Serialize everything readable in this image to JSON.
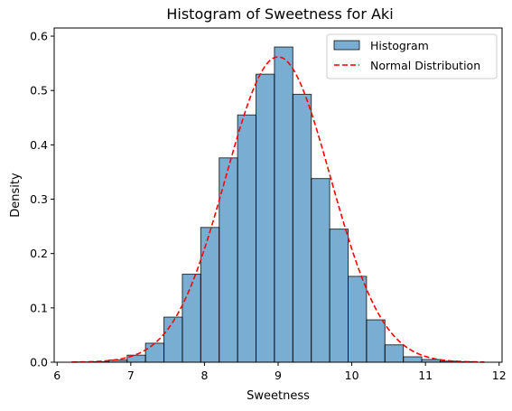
{
  "chart_data": {
    "type": "bar",
    "title": "Histogram of Sweetness for Aki",
    "xlabel": "Sweetness",
    "ylabel": "Density",
    "xlim": [
      5.96,
      12.04
    ],
    "ylim": [
      0,
      0.615
    ],
    "xticks": [
      "6",
      "7",
      "8",
      "9",
      "10",
      "11",
      "12"
    ],
    "yticks": [
      "0.0",
      "0.1",
      "0.2",
      "0.3",
      "0.4",
      "0.5",
      "0.6"
    ],
    "grid": false,
    "legend_position": "top-right",
    "series": [
      {
        "name": "Histogram",
        "kind": "histogram",
        "color": "#1f77b4",
        "alpha": 0.6,
        "edgecolor": "#000000",
        "bins": [
          {
            "x0": 6.2,
            "x1": 6.45,
            "density": 0.0005
          },
          {
            "x0": 6.45,
            "x1": 6.7,
            "density": 0.001
          },
          {
            "x0": 6.7,
            "x1": 6.95,
            "density": 0.004
          },
          {
            "x0": 6.95,
            "x1": 7.2,
            "density": 0.013
          },
          {
            "x0": 7.2,
            "x1": 7.45,
            "density": 0.035
          },
          {
            "x0": 7.45,
            "x1": 7.7,
            "density": 0.083
          },
          {
            "x0": 7.7,
            "x1": 7.95,
            "density": 0.162
          },
          {
            "x0": 7.95,
            "x1": 8.2,
            "density": 0.248
          },
          {
            "x0": 8.2,
            "x1": 8.45,
            "density": 0.376
          },
          {
            "x0": 8.45,
            "x1": 8.7,
            "density": 0.455
          },
          {
            "x0": 8.7,
            "x1": 8.95,
            "density": 0.53
          },
          {
            "x0": 8.95,
            "x1": 9.2,
            "density": 0.58
          },
          {
            "x0": 9.2,
            "x1": 9.45,
            "density": 0.493
          },
          {
            "x0": 9.45,
            "x1": 9.7,
            "density": 0.338
          },
          {
            "x0": 9.7,
            "x1": 9.95,
            "density": 0.245
          },
          {
            "x0": 9.95,
            "x1": 10.2,
            "density": 0.158
          },
          {
            "x0": 10.2,
            "x1": 10.45,
            "density": 0.078
          },
          {
            "x0": 10.45,
            "x1": 10.7,
            "density": 0.032
          },
          {
            "x0": 10.7,
            "x1": 10.95,
            "density": 0.01
          },
          {
            "x0": 10.95,
            "x1": 11.2,
            "density": 0.005
          },
          {
            "x0": 11.2,
            "x1": 11.45,
            "density": 0.002
          },
          {
            "x0": 11.45,
            "x1": 11.7,
            "density": 0.001
          }
        ]
      },
      {
        "name": "Normal Distribution",
        "kind": "line",
        "color": "#ff0000",
        "linestyle": "dashed",
        "mean": 9.0,
        "std": 0.71,
        "x_range": [
          6.2,
          11.8
        ]
      }
    ]
  }
}
